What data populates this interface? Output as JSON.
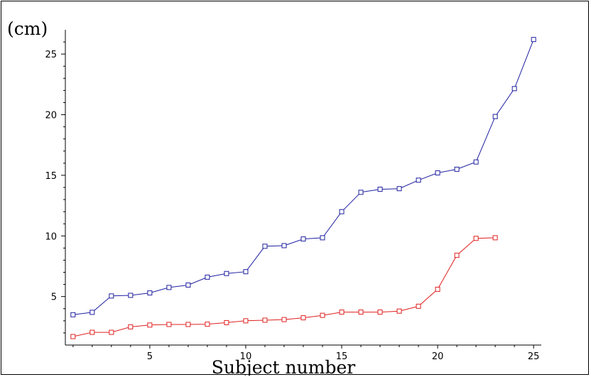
{
  "chart_data": {
    "type": "line",
    "title": "",
    "xlabel": "Subject number",
    "ylabel": "(cm)",
    "xlim": [
      0.6,
      25.4
    ],
    "ylim": [
      1.0,
      27.0
    ],
    "x_ticks": [
      5,
      10,
      15,
      20,
      25
    ],
    "y_ticks": [
      5,
      10,
      15,
      20,
      25
    ],
    "grid": false,
    "legend": "none",
    "series": [
      {
        "color": "#1f1fa0",
        "marker": "square",
        "x": [
          1,
          2,
          3,
          4,
          5,
          6,
          7,
          8,
          9,
          10,
          11,
          12,
          13,
          14,
          15,
          16,
          17,
          18,
          19,
          20,
          21,
          22,
          23,
          24,
          25
        ],
        "y": [
          3.5,
          3.7,
          5.05,
          5.1,
          5.3,
          5.75,
          5.95,
          6.6,
          6.9,
          7.05,
          9.15,
          9.2,
          9.75,
          9.85,
          12.0,
          13.6,
          13.85,
          13.9,
          14.6,
          15.2,
          15.5,
          16.1,
          19.85,
          22.15,
          26.2
        ]
      },
      {
        "color": "#e02020",
        "marker": "square",
        "x": [
          1,
          2,
          3,
          4,
          5,
          6,
          7,
          8,
          9,
          10,
          11,
          12,
          13,
          14,
          15,
          16,
          17,
          18,
          19,
          20,
          21,
          22,
          23
        ],
        "y": [
          1.7,
          2.05,
          2.05,
          2.5,
          2.65,
          2.7,
          2.7,
          2.72,
          2.85,
          3.0,
          3.05,
          3.1,
          3.25,
          3.45,
          3.72,
          3.72,
          3.72,
          3.8,
          4.2,
          5.6,
          8.4,
          9.8,
          9.85
        ]
      }
    ]
  }
}
